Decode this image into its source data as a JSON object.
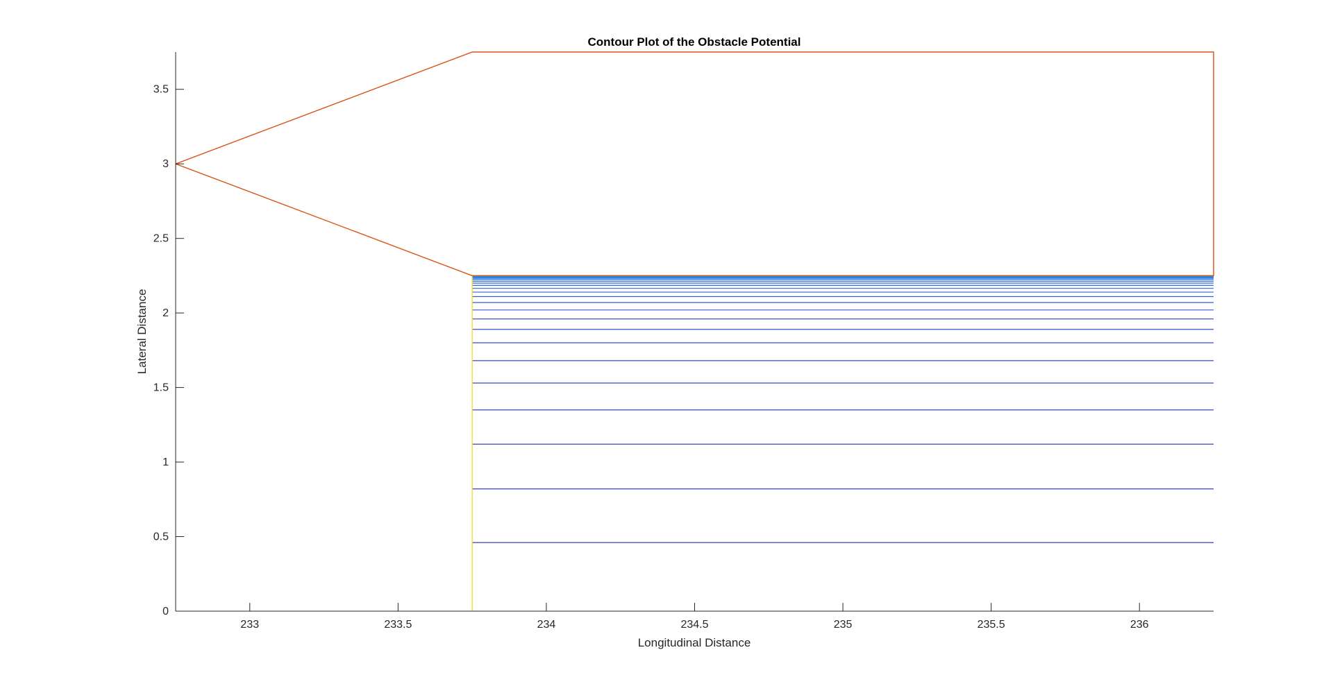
{
  "colors": {
    "axis": "#262626",
    "outline": "#d95319",
    "contour_low": "#3b3bb5",
    "contour_high": "#2a7ff5",
    "top_contour": "#1bc83a",
    "left_edge": "#f2e01a"
  },
  "chart_data": {
    "type": "contour",
    "title": "Contour Plot of the Obstacle Potential",
    "xlabel": "Longitudinal Distance",
    "ylabel": "Lateral Distance",
    "xlim": [
      232.75,
      236.25
    ],
    "ylim": [
      0,
      3.75
    ],
    "xticks": [
      233,
      233.5,
      234,
      234.5,
      235,
      235.5,
      236
    ],
    "xtick_labels": [
      "233",
      "233.5",
      "234",
      "234.5",
      "235",
      "235.5",
      "236"
    ],
    "yticks": [
      0,
      0.5,
      1,
      1.5,
      2,
      2.5,
      3,
      3.5
    ],
    "ytick_labels": [
      "0",
      "0.5",
      "1",
      "1.5",
      "2",
      "2.5",
      "3",
      "3.5"
    ],
    "grid": false,
    "outline_polygon": {
      "x": [
        232.75,
        233.75,
        236.25,
        236.25,
        233.75,
        232.75
      ],
      "y": [
        3.0,
        3.75,
        3.75,
        2.25,
        2.25,
        3.0
      ]
    },
    "contour_x_range": [
      233.75,
      236.25
    ],
    "contour_levels_y": [
      0.46,
      0.82,
      1.12,
      1.35,
      1.53,
      1.68,
      1.8,
      1.89,
      1.96,
      2.02,
      2.07,
      2.11,
      2.14,
      2.165,
      2.185,
      2.2,
      2.212,
      2.222,
      2.23,
      2.236,
      2.241,
      2.245
    ],
    "top_contour_y": 2.25,
    "left_edge": {
      "x": 233.75,
      "y": [
        0,
        2.25
      ]
    }
  }
}
